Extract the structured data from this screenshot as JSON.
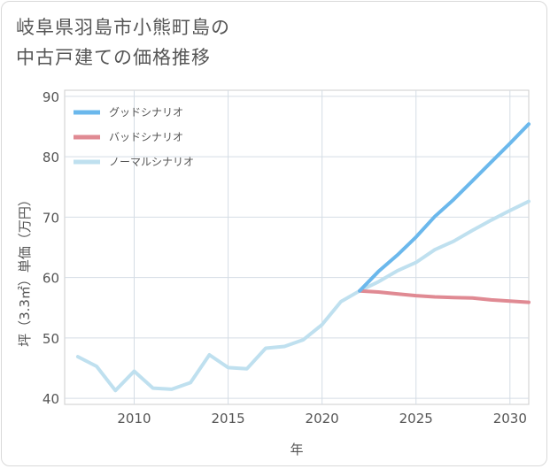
{
  "title_lines": [
    "岐阜県羽島市小熊町島の",
    "中古戸建ての価格推移"
  ],
  "chart_data": {
    "type": "line",
    "xlabel": "年",
    "ylabel": "坪（3.3㎡）単価（万円）",
    "xlim": [
      2006.3,
      2031
    ],
    "ylim": [
      39,
      91
    ],
    "xticks": [
      2010,
      2015,
      2020,
      2025,
      2030
    ],
    "yticks": [
      40,
      50,
      60,
      70,
      80,
      90
    ],
    "grid": true,
    "legend_position": "top-left",
    "series": [
      {
        "name": "グッドシナリオ",
        "color": "#6bb8ec",
        "x": [
          2022,
          2023,
          2024,
          2025,
          2026,
          2027,
          2028,
          2029,
          2030,
          2031
        ],
        "y": [
          57.8,
          61.0,
          63.7,
          66.7,
          70.1,
          72.9,
          76.0,
          79.1,
          82.2,
          85.4
        ]
      },
      {
        "name": "バッドシナリオ",
        "color": "#e08a93",
        "x": [
          2022,
          2023,
          2024,
          2025,
          2026,
          2027,
          2028,
          2029,
          2030,
          2031
        ],
        "y": [
          57.8,
          57.6,
          57.3,
          57.0,
          56.8,
          56.7,
          56.6,
          56.3,
          56.1,
          55.9
        ]
      },
      {
        "name": "ノーマルシナリオ",
        "color": "#bfe0ef",
        "x": [
          2007,
          2008,
          2009,
          2010,
          2011,
          2012,
          2013,
          2014,
          2015,
          2016,
          2017,
          2018,
          2019,
          2020,
          2021,
          2022,
          2023,
          2024,
          2025,
          2026,
          2027,
          2028,
          2029,
          2030,
          2031
        ],
        "y": [
          46.9,
          45.3,
          41.3,
          44.5,
          41.7,
          41.5,
          42.6,
          47.2,
          45.1,
          44.9,
          48.3,
          48.6,
          49.7,
          52.2,
          56.0,
          57.8,
          59.3,
          61.1,
          62.5,
          64.6,
          66.0,
          67.8,
          69.5,
          71.1,
          72.6
        ]
      }
    ]
  }
}
